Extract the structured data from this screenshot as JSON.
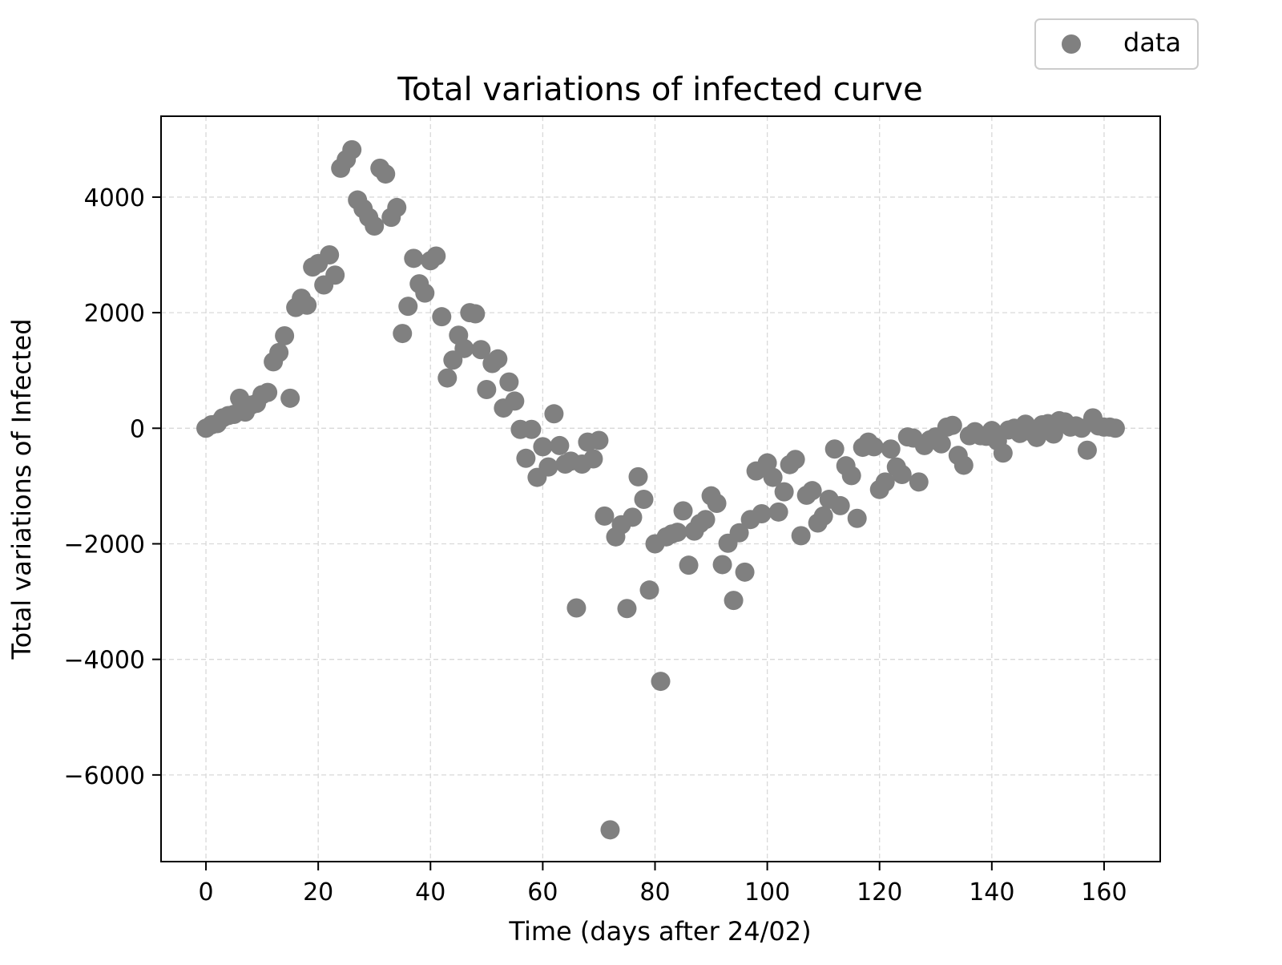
{
  "chart_data": {
    "type": "scatter",
    "title": "Total variations of infected curve",
    "xlabel": "Time (days after 24/02)",
    "ylabel": "Total variations of Infected",
    "xlim": [
      -8,
      170
    ],
    "ylim": [
      -7500,
      5400
    ],
    "xticks": [
      0,
      20,
      40,
      60,
      80,
      100,
      120,
      140,
      160
    ],
    "yticks": [
      -6000,
      -4000,
      -2000,
      0,
      2000,
      4000
    ],
    "grid": true,
    "grid_style": "dashed",
    "legend": {
      "placement": "top-right",
      "entries": [
        {
          "label": "data",
          "color": "#808080"
        }
      ]
    },
    "marker_color": "#808080",
    "series": [
      {
        "name": "data",
        "points": [
          [
            0,
            0
          ],
          [
            1,
            60
          ],
          [
            2,
            80
          ],
          [
            3,
            180
          ],
          [
            4,
            220
          ],
          [
            5,
            240
          ],
          [
            6,
            520
          ],
          [
            7,
            280
          ],
          [
            8,
            400
          ],
          [
            9,
            430
          ],
          [
            10,
            580
          ],
          [
            11,
            620
          ],
          [
            12,
            1150
          ],
          [
            13,
            1310
          ],
          [
            14,
            1600
          ],
          [
            15,
            520
          ],
          [
            16,
            2090
          ],
          [
            17,
            2250
          ],
          [
            18,
            2130
          ],
          [
            19,
            2790
          ],
          [
            20,
            2850
          ],
          [
            21,
            2480
          ],
          [
            22,
            3000
          ],
          [
            23,
            2650
          ],
          [
            24,
            4500
          ],
          [
            25,
            4650
          ],
          [
            26,
            4820
          ],
          [
            27,
            3950
          ],
          [
            28,
            3800
          ],
          [
            29,
            3650
          ],
          [
            30,
            3500
          ],
          [
            31,
            4500
          ],
          [
            32,
            4400
          ],
          [
            33,
            3650
          ],
          [
            34,
            3820
          ],
          [
            35,
            1640
          ],
          [
            36,
            2110
          ],
          [
            37,
            2940
          ],
          [
            38,
            2500
          ],
          [
            39,
            2340
          ],
          [
            40,
            2900
          ],
          [
            41,
            2980
          ],
          [
            42,
            1930
          ],
          [
            43,
            870
          ],
          [
            44,
            1180
          ],
          [
            45,
            1610
          ],
          [
            46,
            1380
          ],
          [
            47,
            2000
          ],
          [
            48,
            1980
          ],
          [
            49,
            1360
          ],
          [
            50,
            670
          ],
          [
            51,
            1120
          ],
          [
            52,
            1200
          ],
          [
            53,
            350
          ],
          [
            54,
            800
          ],
          [
            55,
            470
          ],
          [
            56,
            -20
          ],
          [
            57,
            -520
          ],
          [
            58,
            -20
          ],
          [
            59,
            -850
          ],
          [
            60,
            -320
          ],
          [
            61,
            -670
          ],
          [
            62,
            250
          ],
          [
            63,
            -300
          ],
          [
            64,
            -620
          ],
          [
            65,
            -570
          ],
          [
            66,
            -3110
          ],
          [
            67,
            -620
          ],
          [
            68,
            -240
          ],
          [
            69,
            -530
          ],
          [
            70,
            -210
          ],
          [
            71,
            -1520
          ],
          [
            72,
            -6950
          ],
          [
            73,
            -1880
          ],
          [
            74,
            -1670
          ],
          [
            75,
            -3120
          ],
          [
            76,
            -1540
          ],
          [
            77,
            -840
          ],
          [
            78,
            -1230
          ],
          [
            79,
            -2800
          ],
          [
            80,
            -2000
          ],
          [
            81,
            -4380
          ],
          [
            82,
            -1880
          ],
          [
            83,
            -1830
          ],
          [
            84,
            -1800
          ],
          [
            85,
            -1430
          ],
          [
            86,
            -2370
          ],
          [
            87,
            -1780
          ],
          [
            88,
            -1650
          ],
          [
            89,
            -1580
          ],
          [
            90,
            -1170
          ],
          [
            91,
            -1300
          ],
          [
            92,
            -2360
          ],
          [
            93,
            -1990
          ],
          [
            94,
            -2980
          ],
          [
            95,
            -1810
          ],
          [
            96,
            -2490
          ],
          [
            97,
            -1580
          ],
          [
            98,
            -740
          ],
          [
            99,
            -1480
          ],
          [
            100,
            -600
          ],
          [
            101,
            -850
          ],
          [
            102,
            -1450
          ],
          [
            103,
            -1100
          ],
          [
            104,
            -630
          ],
          [
            105,
            -540
          ],
          [
            106,
            -1860
          ],
          [
            107,
            -1160
          ],
          [
            108,
            -1080
          ],
          [
            109,
            -1640
          ],
          [
            110,
            -1520
          ],
          [
            111,
            -1230
          ],
          [
            112,
            -360
          ],
          [
            113,
            -1340
          ],
          [
            114,
            -650
          ],
          [
            115,
            -820
          ],
          [
            116,
            -1560
          ],
          [
            117,
            -330
          ],
          [
            118,
            -240
          ],
          [
            119,
            -320
          ],
          [
            120,
            -1060
          ],
          [
            121,
            -930
          ],
          [
            122,
            -360
          ],
          [
            123,
            -670
          ],
          [
            124,
            -800
          ],
          [
            125,
            -150
          ],
          [
            126,
            -170
          ],
          [
            127,
            -930
          ],
          [
            128,
            -300
          ],
          [
            129,
            -200
          ],
          [
            130,
            -150
          ],
          [
            131,
            -270
          ],
          [
            132,
            20
          ],
          [
            133,
            50
          ],
          [
            134,
            -470
          ],
          [
            135,
            -640
          ],
          [
            136,
            -130
          ],
          [
            137,
            -60
          ],
          [
            138,
            -130
          ],
          [
            139,
            -140
          ],
          [
            140,
            -40
          ],
          [
            141,
            -220
          ],
          [
            142,
            -430
          ],
          [
            143,
            -30
          ],
          [
            144,
            0
          ],
          [
            145,
            -90
          ],
          [
            146,
            70
          ],
          [
            147,
            -60
          ],
          [
            148,
            -160
          ],
          [
            149,
            60
          ],
          [
            150,
            80
          ],
          [
            151,
            -100
          ],
          [
            152,
            130
          ],
          [
            153,
            110
          ],
          [
            154,
            20
          ],
          [
            155,
            40
          ],
          [
            156,
            0
          ],
          [
            157,
            -380
          ],
          [
            158,
            180
          ],
          [
            159,
            40
          ],
          [
            160,
            20
          ],
          [
            161,
            20
          ],
          [
            162,
            0
          ]
        ]
      }
    ]
  }
}
